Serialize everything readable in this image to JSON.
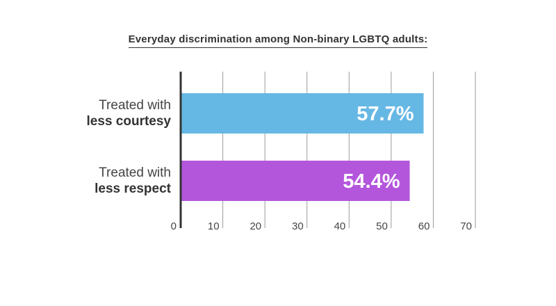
{
  "chart_data": {
    "type": "bar",
    "orientation": "horizontal",
    "title": "Everyday discrimination among Non-binary LGBTQ adults:",
    "categories": [
      {
        "line1": "Treated with",
        "line2": "less courtesy"
      },
      {
        "line1": "Treated with",
        "line2": "less respect"
      }
    ],
    "values": [
      57.7,
      54.4
    ],
    "value_labels": [
      "57.7%",
      "54.4%"
    ],
    "bar_colors": [
      "#66b8e4",
      "#b356dc"
    ],
    "xlim": [
      0,
      70
    ],
    "xticks": [
      0,
      10,
      20,
      30,
      40,
      50,
      60,
      70
    ],
    "xtick_labels": [
      "0",
      "10",
      "20",
      "30",
      "40",
      "50",
      "60",
      "70"
    ],
    "xlabel": "",
    "ylabel": "",
    "grid": true
  }
}
